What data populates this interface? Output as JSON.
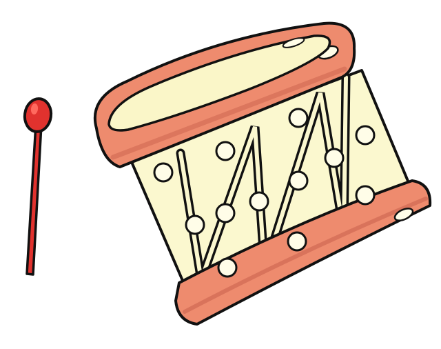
{
  "illustration": {
    "drum": {
      "shell_color": "#FBF8CF",
      "rim_color": "#EE8B6E",
      "rim_shadow_color": "#C9614C",
      "drumhead_color": "#FAF6C8",
      "tack_color": "#FFFDE8",
      "outline_color": "#111111"
    },
    "drumstick": {
      "color": "#E1322E",
      "highlight_color": "#FF6A5E",
      "outline_color": "#111111"
    }
  }
}
